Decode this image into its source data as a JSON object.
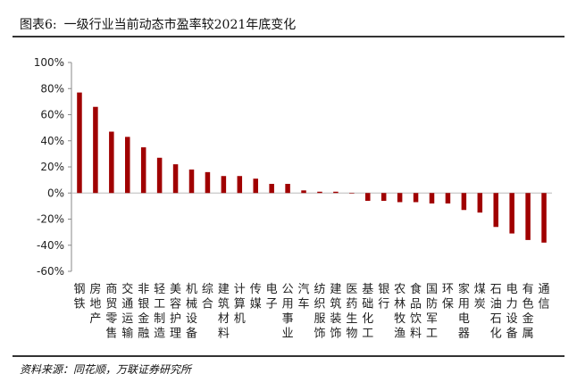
{
  "figure": {
    "label": "图表6:",
    "title": "一级行业当前动态市盈率较2021年底变化",
    "source": "资料来源：同花顺，万联证券研究所"
  },
  "colors": {
    "bar": "#a00000",
    "axis": "#888888",
    "zero_line": "#bbbbbb"
  },
  "chart_data": {
    "type": "bar",
    "title": "一级行业当前动态市盈率较2021年底变化",
    "xlabel": "",
    "ylabel": "",
    "ylim": [
      -0.6,
      1.0
    ],
    "y_ticks": [
      1.0,
      0.8,
      0.6,
      0.4,
      0.2,
      0.0,
      -0.2,
      -0.4,
      -0.6
    ],
    "y_tick_labels": [
      "100%",
      "80%",
      "60%",
      "40%",
      "20%",
      "0%",
      "-20%",
      "-40%",
      "-60%"
    ],
    "grid": false,
    "legend": "none",
    "categories": [
      "钢铁",
      "房地产",
      "商贸零售",
      "交通运输",
      "非银金融",
      "轻工制造",
      "美容护理",
      "机械设备",
      "综合",
      "建筑材料",
      "计算机",
      "传媒",
      "电子",
      "公用事业",
      "汽车",
      "纺织服饰",
      "建筑装饰",
      "医药生物",
      "基础化工",
      "银行",
      "农林牧渔",
      "食品饮料",
      "国防军工",
      "环保",
      "家用电器",
      "煤炭",
      "石油石化",
      "电力设备",
      "有色金属",
      "通信"
    ],
    "values": [
      0.77,
      0.66,
      0.47,
      0.43,
      0.35,
      0.27,
      0.22,
      0.18,
      0.16,
      0.13,
      0.13,
      0.11,
      0.07,
      0.07,
      0.02,
      0.01,
      0.01,
      0.0,
      -0.06,
      -0.06,
      -0.07,
      -0.07,
      -0.08,
      -0.08,
      -0.13,
      -0.15,
      -0.26,
      -0.31,
      -0.36,
      -0.38
    ]
  }
}
